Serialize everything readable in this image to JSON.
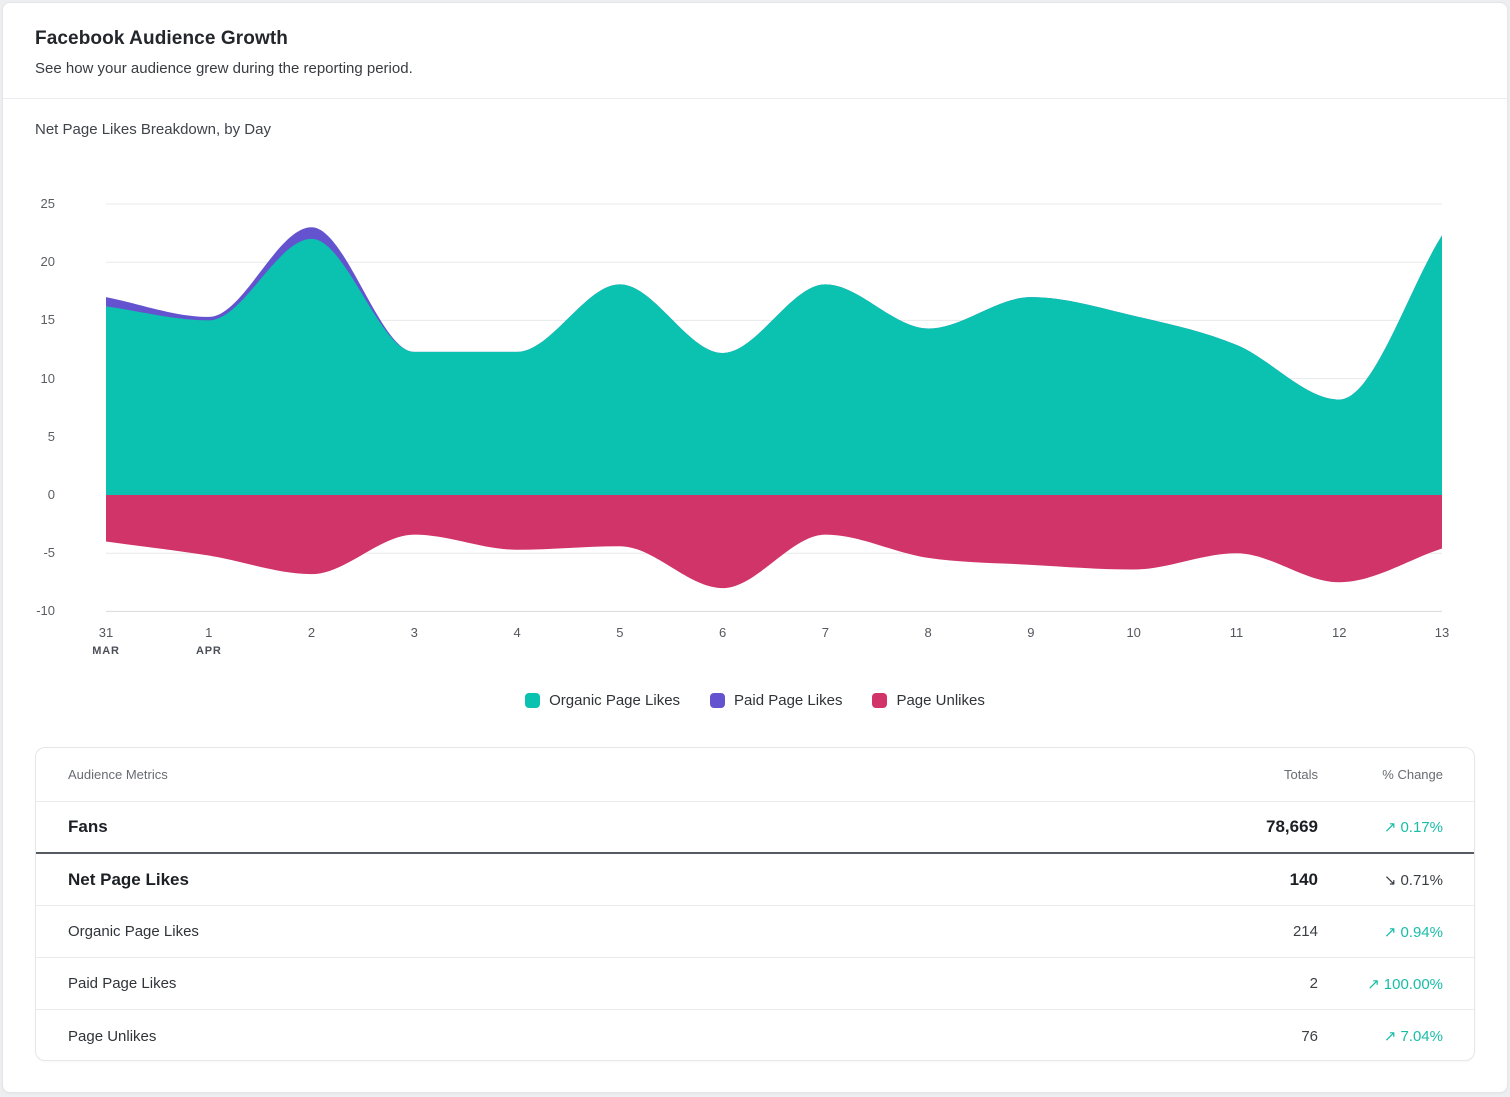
{
  "header": {
    "title": "Facebook Audience Growth",
    "subtitle": "See how your audience grew during the reporting period."
  },
  "chart": {
    "title": "Net Page Likes Breakdown, by Day",
    "y_ticks": [
      25,
      20,
      15,
      10,
      5,
      0,
      -5,
      -10
    ]
  },
  "chart_data": {
    "type": "area",
    "stacked": true,
    "title": "Net Page Likes Breakdown, by Day",
    "ylim": [
      -10,
      25
    ],
    "grid": true,
    "legend_position": "bottom",
    "x": [
      {
        "day": "31",
        "month": "MAR"
      },
      {
        "day": "1",
        "month": "APR"
      },
      {
        "day": "2"
      },
      {
        "day": "3"
      },
      {
        "day": "4"
      },
      {
        "day": "5"
      },
      {
        "day": "6"
      },
      {
        "day": "7"
      },
      {
        "day": "8"
      },
      {
        "day": "9"
      },
      {
        "day": "10"
      },
      {
        "day": "11"
      },
      {
        "day": "12"
      },
      {
        "day": "13"
      }
    ],
    "series": [
      {
        "name": "Organic Page Likes",
        "color": "#0bc2b1",
        "values": [
          16.2,
          15.0,
          22.0,
          12.3,
          12.3,
          18.1,
          12.2,
          18.1,
          14.3,
          17.0,
          15.4,
          12.9,
          8.2,
          22.3
        ]
      },
      {
        "name": "Paid Page Likes",
        "color": "#6453ce",
        "values": [
          0.8,
          0.3,
          1.0,
          0,
          0,
          0,
          0,
          0,
          0,
          0,
          0,
          0,
          0,
          0
        ]
      },
      {
        "name": "Page Unlikes",
        "color": "#d13469",
        "values": [
          -4.0,
          -5.2,
          -6.8,
          -3.4,
          -4.7,
          -4.4,
          -8.0,
          -3.4,
          -5.4,
          -6.0,
          -6.4,
          -5.0,
          -7.5,
          -4.6
        ]
      }
    ]
  },
  "table": {
    "up_glyph": "↗",
    "down_glyph": "↘",
    "up_color": "#17bda7",
    "down_color": "#393d44",
    "header": {
      "metric": "Audience Metrics",
      "totals": "Totals",
      "change": "% Change"
    },
    "rows": [
      {
        "metric": "Fans",
        "total": "78,669",
        "change": "0.17%",
        "direction": "up",
        "emphasis": true,
        "divider": "strong"
      },
      {
        "metric": "Net Page Likes",
        "total": "140",
        "change": "0.71%",
        "direction": "down",
        "emphasis": true
      },
      {
        "metric": "Organic Page Likes",
        "total": "214",
        "change": "0.94%",
        "direction": "up"
      },
      {
        "metric": "Paid Page Likes",
        "total": "2",
        "change": "100.00%",
        "direction": "up"
      },
      {
        "metric": "Page Unlikes",
        "total": "76",
        "change": "7.04%",
        "direction": "up"
      }
    ]
  },
  "colors": {
    "card_bg": "#ffffff",
    "page_bg": "#eceef0",
    "gridline": "#e7e8ea",
    "axis_line": "#d9dadc",
    "organic": "#0bc2b1",
    "paid": "#6453ce",
    "unlikes": "#d13469"
  }
}
